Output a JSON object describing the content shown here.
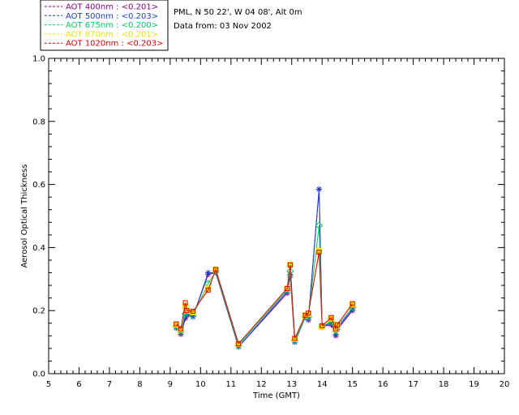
{
  "header": {
    "site": "PML, N 50 22', W 04 08', Alt 0m",
    "date_line": "Data from: 03 Nov 2002"
  },
  "legend": [
    {
      "label": "AOT  400nm : <0.201>",
      "color": "#8b008b"
    },
    {
      "label": "AOT  500nm : <0.203>",
      "color": "#1c3fd0"
    },
    {
      "label": "AOT  675nm : <0.200>",
      "color": "#00cc66"
    },
    {
      "label": "AOT  870nm : <0.201>",
      "color": "#e6e600"
    },
    {
      "label": "AOT 1020nm : <0.203>",
      "color": "#e00000"
    }
  ],
  "chart_data": {
    "type": "line",
    "xlabel": "Time (GMT)",
    "ylabel": "Aerosol Optical Thickness",
    "xlim": [
      5,
      20
    ],
    "ylim": [
      0.0,
      1.0
    ],
    "xticks": [
      "5",
      "6",
      "7",
      "8",
      "9",
      "10",
      "11",
      "12",
      "13",
      "14",
      "15",
      "16",
      "17",
      "18",
      "19",
      "20"
    ],
    "yticks": [
      "0.0",
      "0.2",
      "0.4",
      "0.6",
      "0.8",
      "1.0"
    ],
    "x": [
      9.2,
      9.35,
      9.5,
      9.55,
      9.75,
      10.25,
      10.5,
      11.25,
      12.85,
      12.95,
      13.1,
      13.45,
      13.55,
      13.9,
      14.0,
      14.3,
      14.45,
      14.5,
      15.0
    ],
    "series": [
      {
        "name": "AOT  400nm : <0.201>",
        "values": [
          0.145,
          0.125,
          0.175,
          0.185,
          0.18,
          0.315,
          0.32,
          0.085,
          0.255,
          0.31,
          0.1,
          0.18,
          0.17,
          0.585,
          0.15,
          0.155,
          0.12,
          0.14,
          0.2
        ]
      },
      {
        "name": "AOT  500nm : <0.203>",
        "values": [
          0.145,
          0.13,
          0.18,
          0.19,
          0.18,
          0.32,
          0.32,
          0.085,
          0.26,
          0.315,
          0.1,
          0.18,
          0.175,
          0.585,
          0.15,
          0.16,
          0.125,
          0.145,
          0.205
        ]
      },
      {
        "name": "AOT  675nm : <0.200>",
        "values": [
          0.15,
          0.135,
          0.19,
          0.195,
          0.185,
          0.285,
          0.325,
          0.09,
          0.265,
          0.325,
          0.105,
          0.18,
          0.18,
          0.47,
          0.15,
          0.165,
          0.135,
          0.15,
          0.21
        ]
      },
      {
        "name": "AOT  870nm : <0.201>",
        "values": [
          0.155,
          0.14,
          0.215,
          0.2,
          0.195,
          0.27,
          0.33,
          0.095,
          0.27,
          0.345,
          0.11,
          0.185,
          0.19,
          0.39,
          0.15,
          0.175,
          0.14,
          0.155,
          0.22
        ]
      },
      {
        "name": "AOT 1020nm : <0.203>",
        "values": [
          0.158,
          0.142,
          0.225,
          0.2,
          0.198,
          0.265,
          0.33,
          0.095,
          0.27,
          0.345,
          0.112,
          0.185,
          0.192,
          0.385,
          0.152,
          0.178,
          0.142,
          0.155,
          0.222
        ]
      }
    ],
    "grid": false
  }
}
